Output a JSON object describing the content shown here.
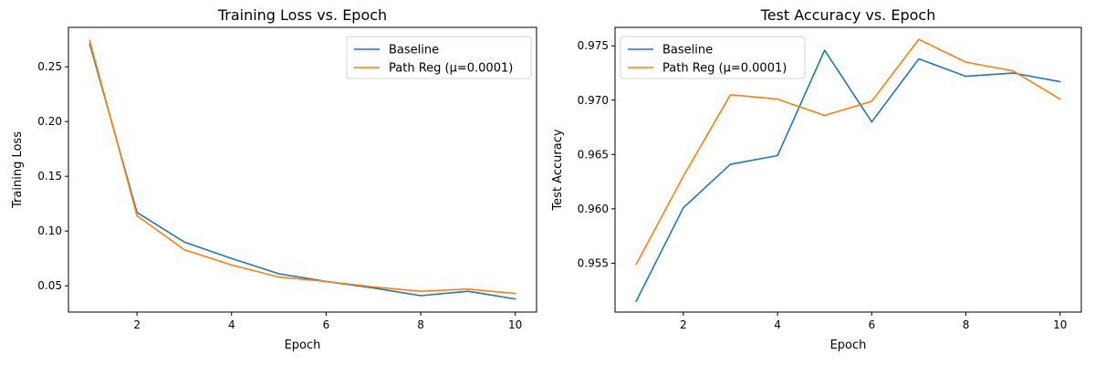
{
  "chart_data": [
    {
      "type": "line",
      "title": "Training Loss vs. Epoch",
      "xlabel": "Epoch",
      "ylabel": "Training Loss",
      "xlim": [
        0.55,
        10.45
      ],
      "ylim": [
        0.026,
        0.286
      ],
      "xticks": [
        2,
        4,
        6,
        8,
        10
      ],
      "yticks": [
        0.05,
        0.1,
        0.15,
        0.2,
        0.25
      ],
      "ytick_labels": [
        "0.05",
        "0.10",
        "0.15",
        "0.20",
        "0.25"
      ],
      "xtick_labels": [
        "2",
        "4",
        "6",
        "8",
        "10"
      ],
      "grid": false,
      "legend": "top-right",
      "x": [
        1,
        2,
        3,
        4,
        5,
        6,
        7,
        8,
        9,
        10
      ],
      "series": [
        {
          "name": "Baseline",
          "color": "#1f77b4",
          "values": [
            0.271,
            0.117,
            0.09,
            0.075,
            0.061,
            0.054,
            0.048,
            0.041,
            0.045,
            0.038
          ]
        },
        {
          "name": "Path Reg (μ=0.0001)",
          "color": "#ff7f0e",
          "values": [
            0.274,
            0.114,
            0.083,
            0.069,
            0.058,
            0.054,
            0.049,
            0.045,
            0.047,
            0.043
          ]
        }
      ]
    },
    {
      "type": "line",
      "title": "Test Accuracy vs. Epoch",
      "xlabel": "Epoch",
      "ylabel": "Test Accuracy",
      "xlim": [
        0.55,
        10.45
      ],
      "ylim": [
        0.9505,
        0.9767
      ],
      "xticks": [
        2,
        4,
        6,
        8,
        10
      ],
      "yticks": [
        0.955,
        0.96,
        0.965,
        0.97,
        0.975
      ],
      "ytick_labels": [
        "0.955",
        "0.960",
        "0.965",
        "0.970",
        "0.975"
      ],
      "xtick_labels": [
        "2",
        "4",
        "6",
        "8",
        "10"
      ],
      "grid": false,
      "legend": "top-left",
      "x": [
        1,
        2,
        3,
        4,
        5,
        6,
        7,
        8,
        9,
        10
      ],
      "series": [
        {
          "name": "Baseline",
          "color": "#1f77b4",
          "values": [
            0.9515,
            0.9601,
            0.9641,
            0.9649,
            0.9746,
            0.968,
            0.9738,
            0.9722,
            0.9725,
            0.9717
          ]
        },
        {
          "name": "Path Reg (μ=0.0001)",
          "color": "#ff7f0e",
          "values": [
            0.9549,
            0.963,
            0.9705,
            0.9701,
            0.9686,
            0.9699,
            0.9756,
            0.9735,
            0.9727,
            0.9701
          ]
        }
      ]
    }
  ]
}
